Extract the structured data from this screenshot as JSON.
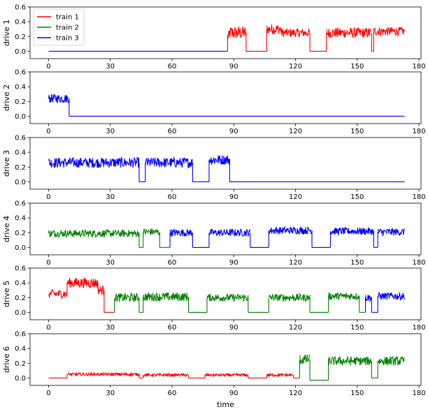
{
  "chart_data": {
    "type": "line",
    "xlabel": "time",
    "x_ticks": [
      0,
      30,
      60,
      90,
      120,
      150,
      180
    ],
    "xlim": [
      -9,
      181
    ],
    "legend": {
      "placement": "top-left",
      "entries": [
        "train 1",
        "train 2",
        "train 3"
      ]
    },
    "series_colors": {
      "train 1": "#ff0000",
      "train 2": "#008000",
      "train 3": "#0000ff"
    },
    "subplots": [
      {
        "ylabel": "drive 1",
        "ylim": [
          -0.1,
          0.6
        ],
        "y_ticks": [
          0.0,
          0.2,
          0.4,
          0.6
        ],
        "segments": [
          {
            "series": "train 3",
            "x0": 0,
            "x1": 87,
            "level": 0.0,
            "noise": 0.0
          },
          {
            "series": "train 1",
            "x0": 87,
            "x1": 88,
            "level": 0.2,
            "noise": 0.08
          },
          {
            "series": "train 1",
            "x0": 88,
            "x1": 96,
            "level": 0.25,
            "noise": 0.09
          },
          {
            "series": "train 1",
            "x0": 96,
            "x1": 106,
            "level": 0.0,
            "noise": 0.0
          },
          {
            "series": "train 1",
            "x0": 106,
            "x1": 113,
            "level": 0.3,
            "noise": 0.07
          },
          {
            "series": "train 1",
            "x0": 113,
            "x1": 127,
            "level": 0.25,
            "noise": 0.06
          },
          {
            "series": "train 1",
            "x0": 127,
            "x1": 135,
            "level": 0.0,
            "noise": 0.0
          },
          {
            "series": "train 1",
            "x0": 135,
            "x1": 157,
            "level": 0.25,
            "noise": 0.07
          },
          {
            "series": "train 1",
            "x0": 157,
            "x1": 158,
            "level": 0.0,
            "noise": 0.0
          },
          {
            "series": "train 1",
            "x0": 158,
            "x1": 173,
            "level": 0.27,
            "noise": 0.06
          }
        ]
      },
      {
        "ylabel": "drive 2",
        "ylim": [
          -0.1,
          0.6
        ],
        "y_ticks": [
          0.0,
          0.2,
          0.4,
          0.6
        ],
        "segments": [
          {
            "series": "train 3",
            "x0": 0,
            "x1": 10,
            "level": 0.24,
            "noise": 0.06
          },
          {
            "series": "train 3",
            "x0": 10,
            "x1": 173,
            "level": 0.0,
            "noise": 0.0
          }
        ]
      },
      {
        "ylabel": "drive 3",
        "ylim": [
          -0.1,
          0.6
        ],
        "y_ticks": [
          0.0,
          0.2,
          0.4,
          0.6
        ],
        "segments": [
          {
            "series": "train 3",
            "x0": 0,
            "x1": 44,
            "level": 0.26,
            "noise": 0.07
          },
          {
            "series": "train 3",
            "x0": 44,
            "x1": 47,
            "level": 0.0,
            "noise": 0.0
          },
          {
            "series": "train 3",
            "x0": 47,
            "x1": 70,
            "level": 0.26,
            "noise": 0.07
          },
          {
            "series": "train 3",
            "x0": 70,
            "x1": 78,
            "level": 0.0,
            "noise": 0.0
          },
          {
            "series": "train 3",
            "x0": 78,
            "x1": 88,
            "level": 0.3,
            "noise": 0.07
          },
          {
            "series": "train 3",
            "x0": 88,
            "x1": 173,
            "level": 0.0,
            "noise": 0.0
          }
        ]
      },
      {
        "ylabel": "drive 4",
        "ylim": [
          -0.1,
          0.6
        ],
        "y_ticks": [
          0.0,
          0.2,
          0.4,
          0.6
        ],
        "segments": [
          {
            "series": "train 2",
            "x0": 0,
            "x1": 44,
            "level": 0.19,
            "noise": 0.05
          },
          {
            "series": "train 2",
            "x0": 44,
            "x1": 46,
            "level": 0.0,
            "noise": 0.0
          },
          {
            "series": "train 2",
            "x0": 46,
            "x1": 54,
            "level": 0.21,
            "noise": 0.05
          },
          {
            "series": "train 2",
            "x0": 54,
            "x1": 59,
            "level": 0.0,
            "noise": 0.0
          },
          {
            "series": "train 3",
            "x0": 59,
            "x1": 70,
            "level": 0.2,
            "noise": 0.05
          },
          {
            "series": "train 3",
            "x0": 70,
            "x1": 78,
            "level": 0.0,
            "noise": 0.0
          },
          {
            "series": "train 3",
            "x0": 78,
            "x1": 98,
            "level": 0.2,
            "noise": 0.05
          },
          {
            "series": "train 3",
            "x0": 98,
            "x1": 107,
            "level": 0.0,
            "noise": 0.0
          },
          {
            "series": "train 3",
            "x0": 107,
            "x1": 128,
            "level": 0.23,
            "noise": 0.05
          },
          {
            "series": "train 3",
            "x0": 128,
            "x1": 137,
            "level": 0.0,
            "noise": 0.0
          },
          {
            "series": "train 3",
            "x0": 137,
            "x1": 158,
            "level": 0.22,
            "noise": 0.05
          },
          {
            "series": "train 3",
            "x0": 158,
            "x1": 160,
            "level": 0.0,
            "noise": 0.0
          },
          {
            "series": "train 3",
            "x0": 160,
            "x1": 173,
            "level": 0.21,
            "noise": 0.05
          }
        ]
      },
      {
        "ylabel": "drive 5",
        "ylim": [
          -0.1,
          0.6
        ],
        "y_ticks": [
          0.0,
          0.2,
          0.4,
          0.6
        ],
        "segments": [
          {
            "series": "train 1",
            "x0": 0,
            "x1": 9,
            "level": 0.25,
            "noise": 0.06
          },
          {
            "series": "train 1",
            "x0": 9,
            "x1": 24,
            "level": 0.4,
            "noise": 0.07
          },
          {
            "series": "train 1",
            "x0": 24,
            "x1": 27,
            "level": 0.3,
            "noise": 0.06
          },
          {
            "series": "train 1",
            "x0": 27,
            "x1": 32,
            "level": 0.0,
            "noise": 0.0
          },
          {
            "series": "train 2",
            "x0": 32,
            "x1": 44,
            "level": 0.2,
            "noise": 0.06
          },
          {
            "series": "train 2",
            "x0": 44,
            "x1": 46,
            "level": 0.0,
            "noise": 0.0
          },
          {
            "series": "train 2",
            "x0": 46,
            "x1": 68,
            "level": 0.21,
            "noise": 0.06
          },
          {
            "series": "train 2",
            "x0": 68,
            "x1": 77,
            "level": 0.0,
            "noise": 0.0
          },
          {
            "series": "train 2",
            "x0": 77,
            "x1": 97,
            "level": 0.2,
            "noise": 0.05
          },
          {
            "series": "train 2",
            "x0": 97,
            "x1": 107,
            "level": 0.0,
            "noise": 0.0
          },
          {
            "series": "train 2",
            "x0": 107,
            "x1": 127,
            "level": 0.2,
            "noise": 0.05
          },
          {
            "series": "train 2",
            "x0": 127,
            "x1": 136,
            "level": 0.0,
            "noise": 0.0
          },
          {
            "series": "train 2",
            "x0": 136,
            "x1": 151,
            "level": 0.22,
            "noise": 0.05
          },
          {
            "series": "train 2",
            "x0": 151,
            "x1": 154,
            "level": 0.0,
            "noise": 0.0
          },
          {
            "series": "train 3",
            "x0": 154,
            "x1": 157,
            "level": 0.2,
            "noise": 0.05
          },
          {
            "series": "train 3",
            "x0": 157,
            "x1": 160,
            "level": 0.0,
            "noise": 0.0
          },
          {
            "series": "train 3",
            "x0": 160,
            "x1": 173,
            "level": 0.22,
            "noise": 0.05
          }
        ]
      },
      {
        "ylabel": "drive 6",
        "ylim": [
          -0.1,
          0.6
        ],
        "y_ticks": [
          0.0,
          0.2,
          0.4,
          0.6
        ],
        "segments": [
          {
            "series": "train 1",
            "x0": 0,
            "x1": 9,
            "level": 0.0,
            "noise": 0.0
          },
          {
            "series": "train 1",
            "x0": 9,
            "x1": 44,
            "level": 0.05,
            "noise": 0.02
          },
          {
            "series": "train 1",
            "x0": 44,
            "x1": 46,
            "level": 0.0,
            "noise": 0.0
          },
          {
            "series": "train 1",
            "x0": 46,
            "x1": 68,
            "level": 0.04,
            "noise": 0.02
          },
          {
            "series": "train 1",
            "x0": 68,
            "x1": 76,
            "level": 0.0,
            "noise": 0.0
          },
          {
            "series": "train 1",
            "x0": 76,
            "x1": 97,
            "level": 0.04,
            "noise": 0.02
          },
          {
            "series": "train 1",
            "x0": 97,
            "x1": 106,
            "level": 0.0,
            "noise": 0.0
          },
          {
            "series": "train 1",
            "x0": 106,
            "x1": 119,
            "level": 0.04,
            "noise": 0.02
          },
          {
            "series": "train 1",
            "x0": 119,
            "x1": 122,
            "level": 0.0,
            "noise": 0.0
          },
          {
            "series": "train 2",
            "x0": 122,
            "x1": 127,
            "level": 0.25,
            "noise": 0.07
          },
          {
            "series": "train 2",
            "x0": 127,
            "x1": 136,
            "level": -0.03,
            "noise": 0.0
          },
          {
            "series": "train 2",
            "x0": 136,
            "x1": 157,
            "level": 0.23,
            "noise": 0.06
          },
          {
            "series": "train 2",
            "x0": 157,
            "x1": 160,
            "level": 0.0,
            "noise": 0.0
          },
          {
            "series": "train 2",
            "x0": 160,
            "x1": 173,
            "level": 0.23,
            "noise": 0.06
          }
        ]
      }
    ]
  }
}
